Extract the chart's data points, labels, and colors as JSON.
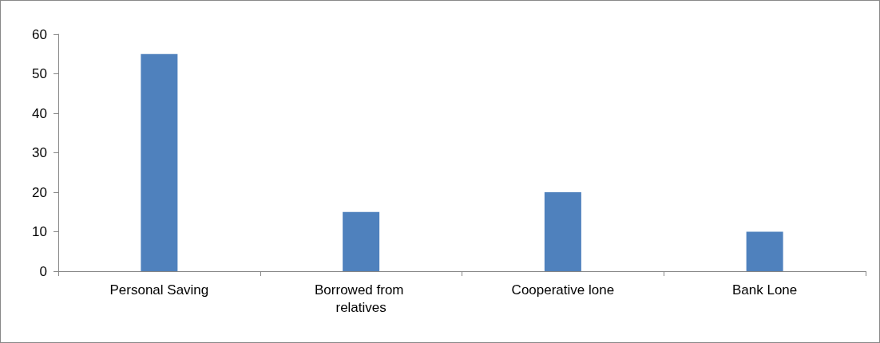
{
  "chart_data": {
    "type": "bar",
    "categories": [
      "Personal Saving",
      "Borrowed from relatives",
      "Cooperative lone",
      "Bank Lone"
    ],
    "values": [
      55,
      15,
      20,
      10
    ],
    "color": "#4f81bd",
    "ylim": [
      0,
      60
    ],
    "yticks": [
      0,
      10,
      20,
      30,
      40,
      50,
      60
    ],
    "grid": false
  }
}
